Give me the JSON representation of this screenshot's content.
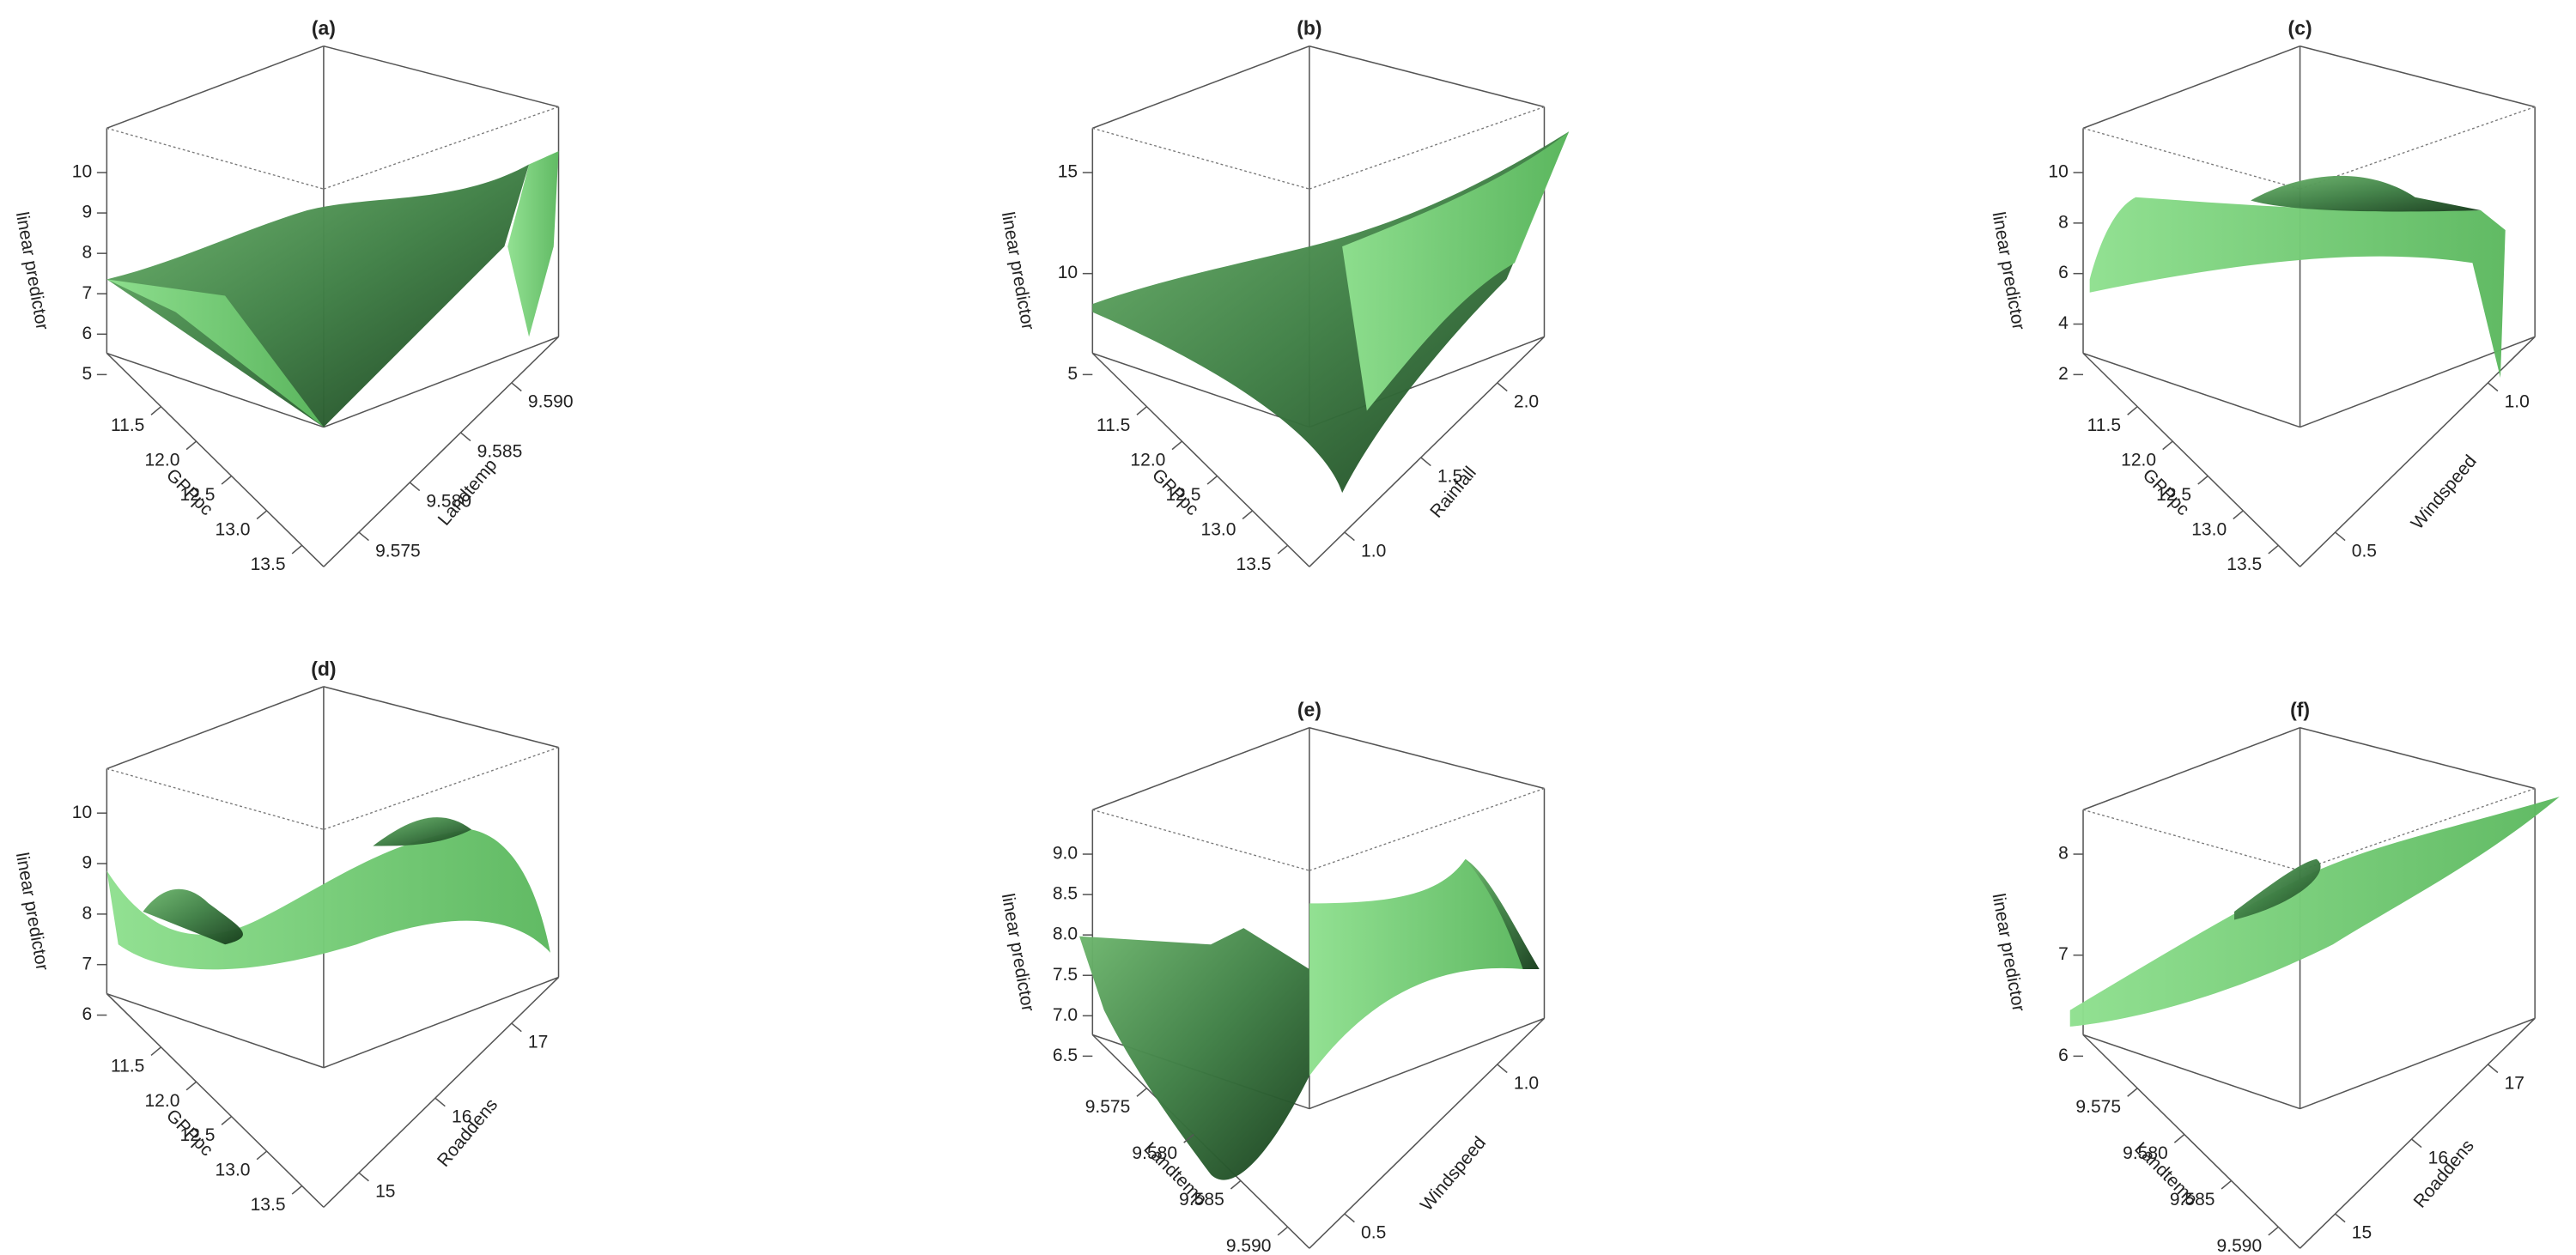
{
  "panels": [
    {
      "title": "(a)",
      "z_label": "linear predictor",
      "x_label": "GPPpc",
      "y_label": "Landtemp",
      "z_ticks": [
        "5",
        "6",
        "7",
        "8",
        "9",
        "10"
      ],
      "x_ticks": [
        "11.5",
        "12.0",
        "12.5",
        "13.0",
        "13.5"
      ],
      "y_ticks": [
        "9.575",
        "9.580",
        "9.585",
        "9.590"
      ]
    },
    {
      "title": "(b)",
      "z_label": "linear predictor",
      "x_label": "GPPpc",
      "y_label": "Rainfall",
      "z_ticks": [
        "5",
        "10",
        "15"
      ],
      "x_ticks": [
        "11.5",
        "12.0",
        "12.5",
        "13.0",
        "13.5"
      ],
      "y_ticks": [
        "1.0",
        "1.5",
        "2.0"
      ]
    },
    {
      "title": "(c)",
      "z_label": "linear predictor",
      "x_label": "GPPpc",
      "y_label": "Windspeed",
      "z_ticks": [
        "2",
        "4",
        "6",
        "8",
        "10"
      ],
      "x_ticks": [
        "11.5",
        "12.0",
        "12.5",
        "13.0",
        "13.5"
      ],
      "y_ticks": [
        "0.5",
        "1.0"
      ]
    },
    {
      "title": "(d)",
      "z_label": "linear predictor",
      "x_label": "GPPpc",
      "y_label": "Roaddens",
      "z_ticks": [
        "6",
        "7",
        "8",
        "9",
        "10"
      ],
      "x_ticks": [
        "11.5",
        "12.0",
        "12.5",
        "13.0",
        "13.5"
      ],
      "y_ticks": [
        "15",
        "16",
        "17"
      ]
    },
    {
      "title": "(e)",
      "z_label": "linear predictor",
      "x_label": "Landtemp",
      "y_label": "Windspeed",
      "z_ticks": [
        "6.5",
        "7.0",
        "7.5",
        "8.0",
        "8.5",
        "9.0"
      ],
      "x_ticks": [
        "9.575",
        "9.580",
        "9.585",
        "9.590"
      ],
      "y_ticks": [
        "0.5",
        "1.0"
      ]
    },
    {
      "title": "(f)",
      "z_label": "linear predictor",
      "x_label": "Landtemp",
      "y_label": "Roaddens",
      "z_ticks": [
        "6",
        "7",
        "8"
      ],
      "x_ticks": [
        "9.575",
        "9.580",
        "9.585",
        "9.590"
      ],
      "y_ticks": [
        "15",
        "16",
        "17"
      ]
    }
  ]
}
